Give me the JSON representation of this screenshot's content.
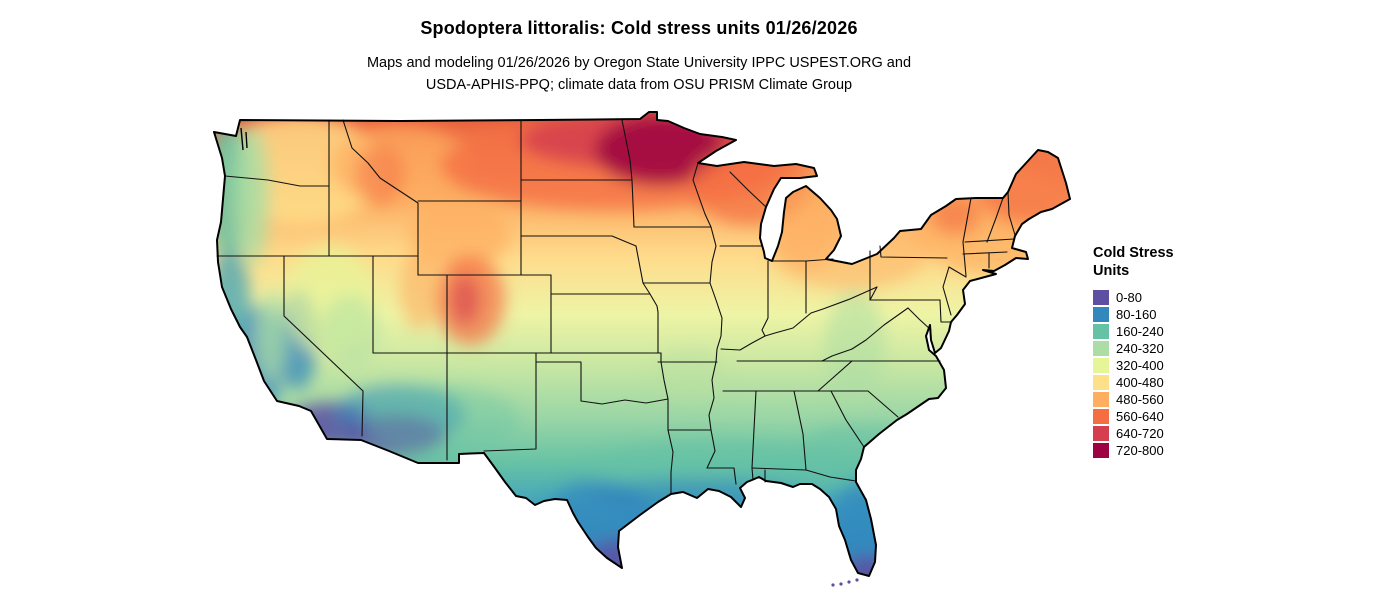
{
  "header": {
    "title": "Spodoptera littoralis: Cold stress units 01/26/2026",
    "subtitle_line1": "Maps and modeling 01/26/2026 by Oregon State University IPPC USPEST.ORG and",
    "subtitle_line2": "USDA-APHIS-PPQ; climate data from OSU PRISM Climate Group"
  },
  "legend": {
    "title_line1": "Cold Stress",
    "title_line2": "Units",
    "items": [
      {
        "label": "0-80",
        "color": "#5e4fa2"
      },
      {
        "label": "80-160",
        "color": "#3288bd"
      },
      {
        "label": "160-240",
        "color": "#66c2a5"
      },
      {
        "label": "240-320",
        "color": "#abdda4"
      },
      {
        "label": "320-400",
        "color": "#e6f598"
      },
      {
        "label": "400-480",
        "color": "#fee08b"
      },
      {
        "label": "480-560",
        "color": "#fdae61"
      },
      {
        "label": "560-640",
        "color": "#f46d43"
      },
      {
        "label": "640-720",
        "color": "#d53e4f"
      },
      {
        "label": "720-800",
        "color": "#9e0142"
      }
    ]
  },
  "map": {
    "region": "Continental United States",
    "variable": "Cold stress units",
    "date": "01/26/2026"
  }
}
